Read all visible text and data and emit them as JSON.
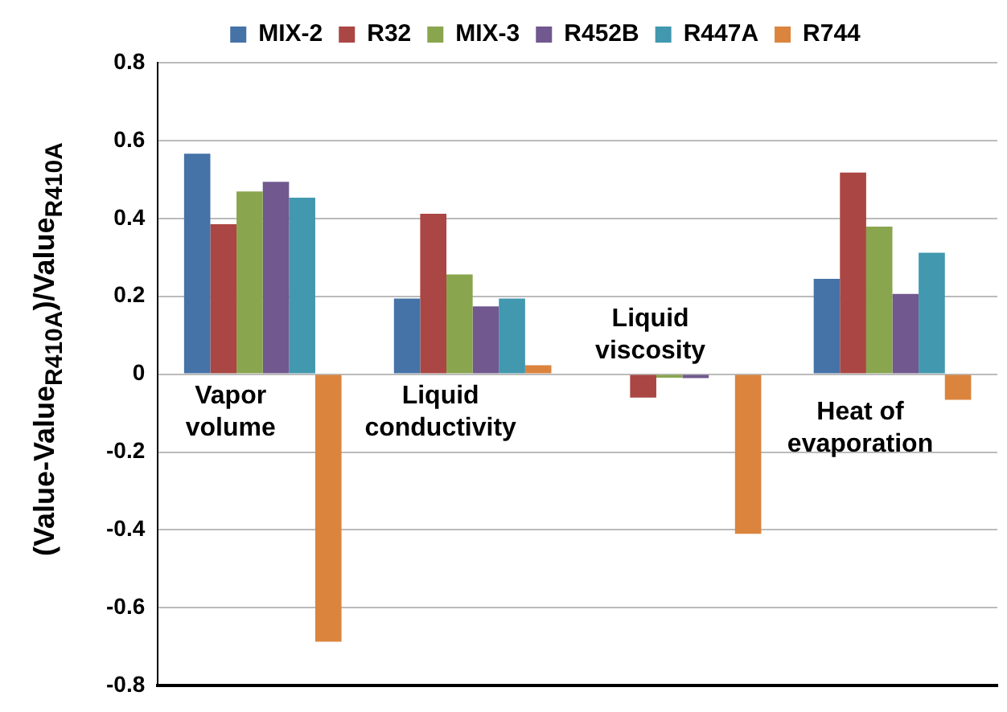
{
  "chart_data": {
    "type": "bar",
    "ylabel": "(Value-Value$_{R410A}$)/Value$_{R410A}$",
    "categories": [
      "Vapor volume",
      "Liquid conductivity",
      "Liquid viscosity",
      "Heat of evaporation"
    ],
    "series": [
      {
        "name": "MIX-2",
        "color": "#4572a7",
        "values": [
          0.566,
          0.194,
          null,
          0.245
        ]
      },
      {
        "name": "R32",
        "color": "#aa4643",
        "values": [
          0.385,
          0.412,
          -0.06,
          0.518
        ]
      },
      {
        "name": "MIX-3",
        "color": "#89a54e",
        "values": [
          0.469,
          0.256,
          -0.009,
          0.379
        ]
      },
      {
        "name": "R452B",
        "color": "#71588f",
        "values": [
          0.494,
          0.174,
          -0.01,
          0.206
        ]
      },
      {
        "name": "R447A",
        "color": "#4198af",
        "values": [
          0.453,
          0.194,
          null,
          0.312
        ]
      },
      {
        "name": "R744",
        "color": "#db843d",
        "values": [
          -0.687,
          0.023,
          -0.41,
          -0.066
        ]
      }
    ],
    "ylim": [
      -0.8,
      0.8
    ],
    "yticks": [
      -0.8,
      -0.6,
      -0.4,
      -0.2,
      0,
      0.2,
      0.4,
      0.6,
      0.8
    ],
    "grid": "y",
    "legend": "top"
  }
}
